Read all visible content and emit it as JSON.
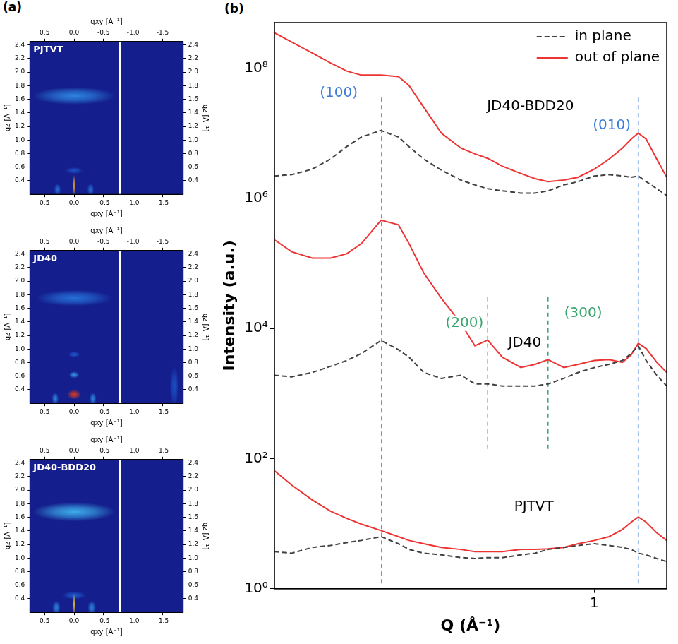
{
  "chart_data": [
    {
      "type": "heatmap",
      "panel_label": "(a)",
      "title": "PJTVT",
      "x_label": "qxy [A⁻¹]",
      "y_label": "qz [A⁻¹]",
      "xlim": [
        0.75,
        -1.85
      ],
      "ylim": [
        0.2,
        2.45
      ],
      "xticks": [
        0.5,
        {
          "value": 0,
          "label": "0.0"
        },
        -0.5,
        {
          "value": -1,
          "label": "-1.0"
        },
        -1.5
      ],
      "yticks": [
        0.4,
        0.6,
        0.8,
        {
          "value": 1,
          "label": "1.0"
        },
        1.2,
        1.4,
        1.6,
        1.8,
        {
          "value": 2,
          "label": "2.0"
        },
        2.2,
        2.4
      ],
      "grid": false,
      "detector_gap_q_xy": -0.78,
      "intensity_blobs": [
        {
          "q_xy": 0,
          "q_z": 1.65,
          "half_width": 0.7,
          "half_height": 0.13,
          "level": 0.4
        },
        {
          "q_xy": 0,
          "q_z": 0.55,
          "half_width": 0.15,
          "half_height": 0.05,
          "level": 0.25
        },
        {
          "q_xy": 0.28,
          "q_z": 0.27,
          "half_width": 0.06,
          "half_height": 0.09,
          "level": 0.35
        },
        {
          "q_xy": -0.28,
          "q_z": 0.27,
          "half_width": 0.06,
          "half_height": 0.09,
          "level": 0.35
        },
        {
          "q_xy": 0,
          "q_z": 0.33,
          "half_width": 0.03,
          "half_height": 0.16,
          "level": 0.85
        }
      ]
    },
    {
      "type": "heatmap",
      "title": "JD40",
      "x_label": "qxy [A⁻¹]",
      "y_label": "qz [A⁻¹]",
      "xlim": [
        0.75,
        -1.85
      ],
      "ylim": [
        0.2,
        2.45
      ],
      "xticks": [
        0.5,
        {
          "value": 0,
          "label": "0.0"
        },
        -0.5,
        {
          "value": -1,
          "label": "-1.0"
        },
        -1.5
      ],
      "yticks": [
        0.4,
        0.6,
        0.8,
        {
          "value": 1,
          "label": "1.0"
        },
        1.2,
        1.4,
        1.6,
        1.8,
        {
          "value": 2,
          "label": "2.0"
        },
        2.2,
        2.4
      ],
      "grid": false,
      "detector_gap_q_xy": -0.78,
      "intensity_blobs": [
        {
          "q_xy": 0,
          "q_z": 1.75,
          "half_width": 0.65,
          "half_height": 0.12,
          "level": 0.35
        },
        {
          "q_xy": 0,
          "q_z": 0.92,
          "half_width": 0.1,
          "half_height": 0.045,
          "level": 0.3
        },
        {
          "q_xy": 0,
          "q_z": 0.62,
          "half_width": 0.09,
          "half_height": 0.05,
          "level": 0.45
        },
        {
          "q_xy": 0.32,
          "q_z": 0.27,
          "half_width": 0.06,
          "half_height": 0.09,
          "level": 0.4
        },
        {
          "q_xy": -0.32,
          "q_z": 0.27,
          "half_width": 0.06,
          "half_height": 0.09,
          "level": 0.4
        },
        {
          "q_xy": -1.7,
          "q_z": 0.45,
          "half_width": 0.08,
          "half_height": 0.3,
          "level": 0.25
        },
        {
          "q_xy": 0,
          "q_z": 0.33,
          "half_width": 0.12,
          "half_height": 0.07,
          "level": 1.0
        }
      ]
    },
    {
      "type": "heatmap",
      "title": "JD40-BDD20",
      "x_label": "qxy [A⁻¹]",
      "y_label": "qz [A⁻¹]",
      "xlim": [
        0.75,
        -1.85
      ],
      "ylim": [
        0.2,
        2.45
      ],
      "xticks": [
        0.5,
        {
          "value": 0,
          "label": "0.0"
        },
        -0.5,
        {
          "value": -1,
          "label": "-1.0"
        },
        -1.5
      ],
      "yticks": [
        0.4,
        0.6,
        0.8,
        {
          "value": 1,
          "label": "1.0"
        },
        1.2,
        1.4,
        1.6,
        1.8,
        {
          "value": 2,
          "label": "2.0"
        },
        2.2,
        2.4
      ],
      "grid": false,
      "detector_gap_q_xy": -0.78,
      "intensity_blobs": [
        {
          "q_xy": 0,
          "q_z": 1.68,
          "half_width": 0.7,
          "half_height": 0.14,
          "level": 0.5
        },
        {
          "q_xy": 0,
          "q_z": 0.45,
          "half_width": 0.2,
          "half_height": 0.06,
          "level": 0.3
        },
        {
          "q_xy": 0.3,
          "q_z": 0.27,
          "half_width": 0.07,
          "half_height": 0.1,
          "level": 0.4
        },
        {
          "q_xy": -0.3,
          "q_z": 0.27,
          "half_width": 0.07,
          "half_height": 0.1,
          "level": 0.4
        },
        {
          "q_xy": 0,
          "q_z": 0.32,
          "half_width": 0.03,
          "half_height": 0.16,
          "level": 0.8
        }
      ]
    },
    {
      "type": "line",
      "panel_label": "(b)",
      "x_label": "Q (Å⁻¹)",
      "y_label": "Intensity (a.u.)",
      "log": true,
      "grid": false,
      "legend": "upper right",
      "xlim": [
        0.125,
        1.6
      ],
      "ylim": [
        1,
        500000000
      ],
      "xticks": [
        1
      ],
      "yticks": [
        {
          "value": 1,
          "label": "10⁰"
        },
        {
          "value": 100,
          "label": "10²"
        },
        {
          "value": 10000,
          "label": "10⁴"
        },
        {
          "value": 1000000,
          "label": "10⁶"
        },
        {
          "value": 100000000,
          "label": "10⁸"
        }
      ],
      "x": [
        0.125,
        0.14,
        0.16,
        0.18,
        0.2,
        0.22,
        0.25,
        0.28,
        0.3,
        0.33,
        0.37,
        0.42,
        0.46,
        0.5,
        0.55,
        0.62,
        0.68,
        0.74,
        0.82,
        0.9,
        1.0,
        1.1,
        1.2,
        1.27,
        1.33,
        1.4,
        1.5,
        1.6
      ],
      "series": [
        {
          "name": "in plane",
          "color": "#404040",
          "line_style": "dashed",
          "values": [
            2200000,
            2300000,
            2800000,
            4000000,
            6200000,
            8700000,
            11000000,
            8700000,
            6200000,
            4000000,
            2700000,
            1900000,
            1600000,
            1400000,
            1300000,
            1200000,
            1200000,
            1300000,
            1600000,
            1800000,
            2200000,
            2300000,
            2200000,
            2100000,
            2200000,
            1800000,
            1400000,
            1100000
          ]
        },
        {
          "name": "out of plane",
          "color": "#ee3333",
          "line_style": "solid",
          "values": [
            350000000,
            250000000,
            170000000,
            120000000,
            90000000,
            78000000,
            78000000,
            74000000,
            54000000,
            25000000,
            10000000,
            5900000,
            4800000,
            4100000,
            3100000,
            2400000,
            2000000,
            1800000,
            1900000,
            2100000,
            2800000,
            4000000,
            5900000,
            8100000,
            10000000,
            8100000,
            4000000,
            2100000
          ]
        },
        {
          "name": "in plane",
          "color": "#404040",
          "line_style": "dashed",
          "values": [
            1900,
            1800,
            2100,
            2600,
            3200,
            4100,
            6500,
            4700,
            3600,
            2100,
            1700,
            1900,
            1400,
            1400,
            1300,
            1300,
            1300,
            1400,
            1700,
            2100,
            2500,
            2800,
            3200,
            4100,
            5400,
            3200,
            1900,
            1300
          ]
        },
        {
          "name": "out of plane",
          "color": "#ee3333",
          "line_style": "solid",
          "values": [
            230000,
            150000,
            120000,
            120000,
            140000,
            200000,
            460000,
            390000,
            200000,
            71000,
            29000,
            12000,
            5400,
            6600,
            3600,
            2500,
            2800,
            3300,
            2500,
            2800,
            3200,
            3300,
            3000,
            3900,
            5900,
            4900,
            3000,
            2100
          ]
        },
        {
          "name": "in plane",
          "color": "#404040",
          "line_style": "dashed",
          "values": [
            3.7,
            3.5,
            4.3,
            4.6,
            5.1,
            5.5,
            6.3,
            4.9,
            4,
            3.5,
            3.3,
            3,
            2.9,
            3,
            3,
            3.3,
            3.5,
            4,
            4.3,
            4.6,
            4.9,
            4.6,
            4.3,
            4,
            3.5,
            3.3,
            2.9,
            2.6
          ]
        },
        {
          "name": "out of plane",
          "color": "#ee3333",
          "line_style": "solid",
          "values": [
            65,
            39,
            23,
            15.5,
            12,
            9.8,
            7.8,
            6.3,
            5.5,
            4.9,
            4.3,
            4,
            3.7,
            3.7,
            3.7,
            4,
            4,
            4.1,
            4.3,
            4.9,
            5.5,
            6.3,
            8.1,
            10.5,
            12.6,
            10.5,
            7.2,
            5.5
          ]
        }
      ],
      "reference_lines": [
        {
          "x": 0.251,
          "y_from": 1.2,
          "y_to": 36000000,
          "color": "#3b7dd8"
        },
        {
          "x": 1.33,
          "y_from": 1.2,
          "y_to": 36000000,
          "color": "#3b7dd8"
        },
        {
          "x": 0.5,
          "y_from": 140,
          "y_to": 32000,
          "color": "#3aa66e"
        },
        {
          "x": 0.74,
          "y_from": 140,
          "y_to": 32000,
          "color": "#3aa66e"
        }
      ],
      "annotations": [
        {
          "text": "(100)",
          "x": 0.19,
          "y": 41000000,
          "color": "#3b7dd8"
        },
        {
          "text": "(010)",
          "x": 1.12,
          "y": 13000000,
          "color": "#3b7dd8"
        },
        {
          "text": "(200)",
          "x": 0.43,
          "y": 12000,
          "color": "#3aa66e"
        },
        {
          "text": "(300)",
          "x": 0.93,
          "y": 17000,
          "color": "#3aa66e"
        },
        {
          "text": "JD40-BDD20",
          "x": 0.66,
          "y": 26000000,
          "color": "#000000"
        },
        {
          "text": "JD40",
          "x": 0.636,
          "y": 6000,
          "color": "#000000"
        },
        {
          "text": "PJTVT",
          "x": 0.675,
          "y": 18,
          "color": "#000000"
        }
      ]
    }
  ]
}
